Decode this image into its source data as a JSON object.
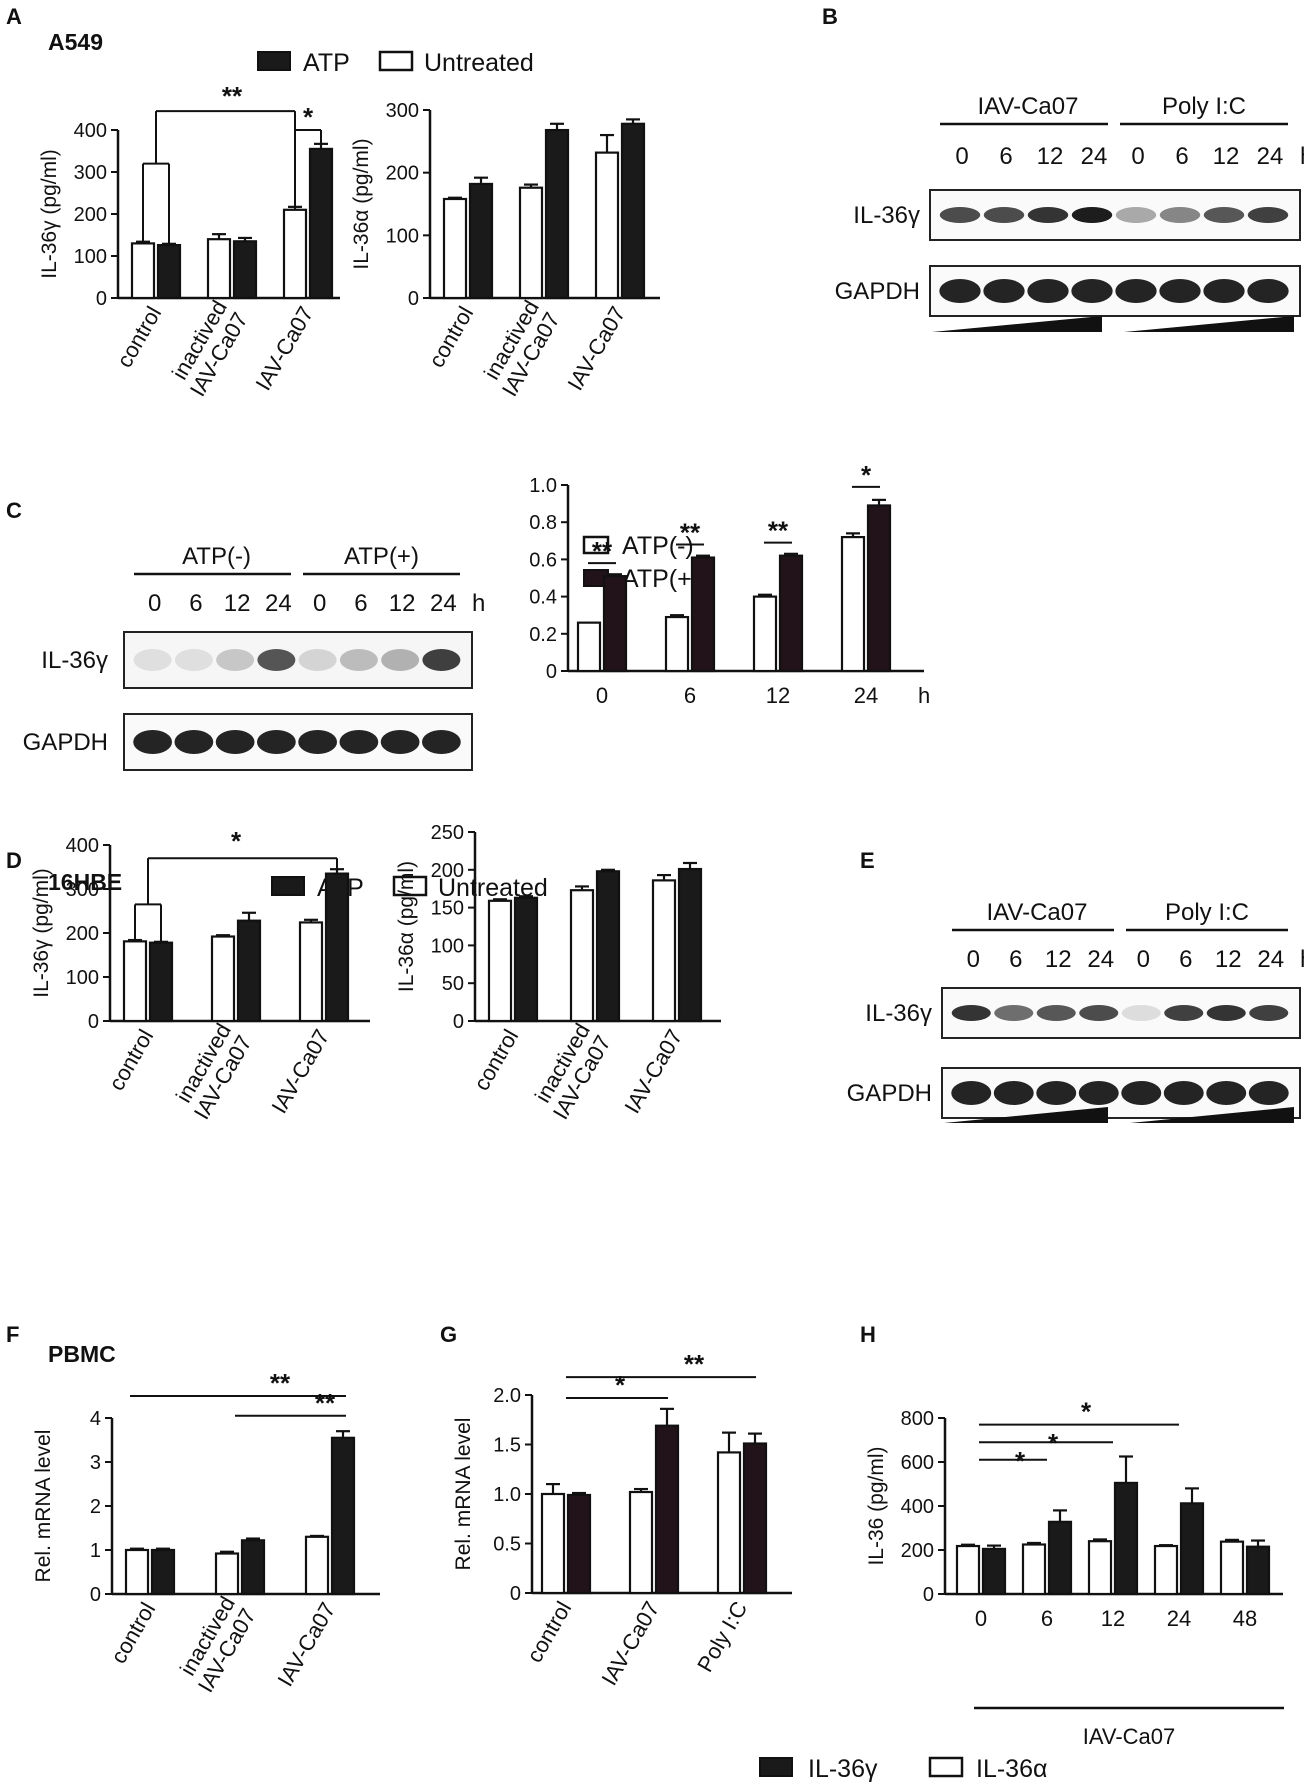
{
  "colors": {
    "filled": "#1a1a1a",
    "filled_dark": "#22131a",
    "open": "#ffffff",
    "stroke": "#111111"
  },
  "panels": {
    "A": {
      "letter": "A",
      "cell": "A549",
      "legend_filled": "ATP",
      "legend_open": "Untreated"
    },
    "B": {
      "letter": "B"
    },
    "C": {
      "letter": "C"
    },
    "D": {
      "letter": "D",
      "cell": "16HBE",
      "legend_filled": "ATP",
      "legend_open": "Untreated"
    },
    "E": {
      "letter": "E"
    },
    "F": {
      "letter": "F",
      "cell": "PBMC"
    },
    "G": {
      "letter": "G"
    },
    "H": {
      "letter": "H",
      "group_label": "IAV-Ca07",
      "legend_filled": "IL-36γ",
      "legend_open": "IL-36α"
    }
  },
  "blots": {
    "B": {
      "group1": "IAV-Ca07",
      "group2": "Poly I:C",
      "times": [
        "0",
        "6",
        "12",
        "24"
      ],
      "unit": "h",
      "row1": "IL-36γ",
      "row2": "GAPDH"
    },
    "C": {
      "group1": "ATP(-)",
      "group2": "ATP(+)",
      "times": [
        "0",
        "6",
        "12",
        "24"
      ],
      "unit": "h",
      "row1": "IL-36γ",
      "row2": "GAPDH"
    },
    "E": {
      "group1": "IAV-Ca07",
      "group2": "Poly I:C",
      "times": [
        "0",
        "6",
        "12",
        "24"
      ],
      "unit": "h",
      "row1": "IL-36γ",
      "row2": "GAPDH"
    }
  },
  "chart_data": [
    {
      "id": "A1",
      "type": "bar",
      "ylabel": "IL-36γ (pg/ml)",
      "ylim": [
        0,
        400
      ],
      "yticks": [
        0,
        100,
        200,
        300,
        400
      ],
      "categories": [
        "control",
        "inactived\nIAV-Ca07",
        "IAV-Ca07"
      ],
      "series": [
        {
          "name": "Untreated",
          "values": [
            130,
            140,
            210
          ],
          "err": [
            4,
            12,
            7
          ]
        },
        {
          "name": "ATP",
          "values": [
            126,
            135,
            355
          ],
          "err": [
            3,
            8,
            12
          ]
        }
      ],
      "sig": [
        {
          "text": "**",
          "kind": "bracket"
        },
        {
          "text": "*",
          "kind": "pair"
        }
      ]
    },
    {
      "id": "A2",
      "type": "bar",
      "ylabel": "IL-36α (pg/ml)",
      "ylim": [
        0,
        300
      ],
      "yticks": [
        0,
        100,
        200,
        300
      ],
      "categories": [
        "control",
        "inactived\nIAV-Ca07",
        "IAV-Ca07"
      ],
      "series": [
        {
          "name": "Untreated",
          "values": [
            158,
            176,
            232
          ],
          "err": [
            2,
            5,
            28
          ]
        },
        {
          "name": "ATP",
          "values": [
            182,
            268,
            278
          ],
          "err": [
            10,
            10,
            7
          ]
        }
      ]
    },
    {
      "id": "C2",
      "type": "bar",
      "ylim": [
        0,
        1.0
      ],
      "yticks": [
        "0",
        "0.2",
        "0.4",
        "0.6",
        "0.8",
        "1.0"
      ],
      "categories": [
        "0",
        "6",
        "12",
        "24"
      ],
      "x_unit": "h",
      "series": [
        {
          "name": "ATP(-)",
          "values": [
            0.26,
            0.29,
            0.4,
            0.72
          ],
          "err": [
            0,
            0.01,
            0.01,
            0.02
          ]
        },
        {
          "name": "ATP(+)",
          "values": [
            0.51,
            0.61,
            0.62,
            0.89
          ],
          "err": [
            0.01,
            0.01,
            0.01,
            0.03
          ]
        }
      ],
      "sig": [
        {
          "text": "**"
        },
        {
          "text": "**"
        },
        {
          "text": "**"
        },
        {
          "text": "*"
        }
      ]
    },
    {
      "id": "D1",
      "type": "bar",
      "ylabel": "IL-36γ (pg/ml)",
      "ylim": [
        0,
        400
      ],
      "yticks": [
        0,
        100,
        200,
        300,
        400
      ],
      "categories": [
        "control",
        "inactived\nIAV-Ca07",
        "IAV-Ca07"
      ],
      "series": [
        {
          "name": "Untreated",
          "values": [
            181,
            192,
            224
          ],
          "err": [
            3,
            3,
            6
          ]
        },
        {
          "name": "ATP",
          "values": [
            178,
            228,
            335
          ],
          "err": [
            2,
            18,
            10
          ]
        }
      ],
      "sig": [
        {
          "text": "*"
        }
      ]
    },
    {
      "id": "D2",
      "type": "bar",
      "ylabel": "IL-36α (pg/ml)",
      "ylim": [
        0,
        250
      ],
      "yticks": [
        0,
        50,
        100,
        150,
        200,
        250
      ],
      "categories": [
        "control",
        "inactived\nIAV-Ca07",
        "IAV-Ca07"
      ],
      "series": [
        {
          "name": "Untreated",
          "values": [
            159,
            173,
            186
          ],
          "err": [
            2,
            5,
            7
          ]
        },
        {
          "name": "ATP",
          "values": [
            163,
            198,
            201
          ],
          "err": [
            2,
            2,
            8
          ]
        }
      ]
    },
    {
      "id": "F",
      "type": "bar",
      "ylabel": "Rel. mRNA level",
      "ylim": [
        0,
        4
      ],
      "yticks": [
        0,
        1,
        2,
        3,
        4
      ],
      "categories": [
        "control",
        "inactived\nIAV-Ca07",
        "IAV-Ca07"
      ],
      "series": [
        {
          "name": "IL-36α",
          "values": [
            1.0,
            0.92,
            1.3
          ],
          "err": [
            0.03,
            0.04,
            0.02
          ]
        },
        {
          "name": "IL-36γ",
          "values": [
            1.0,
            1.22,
            3.55
          ],
          "err": [
            0.03,
            0.04,
            0.15
          ]
        }
      ],
      "sig": [
        {
          "text": "**"
        },
        {
          "text": "**"
        }
      ]
    },
    {
      "id": "G",
      "type": "bar",
      "ylabel": "Rel. mRNA level",
      "ylim": [
        0,
        2.0
      ],
      "yticks": [
        "0",
        "0.5",
        "1.0",
        "1.5",
        "2.0"
      ],
      "categories": [
        "control",
        "IAV-Ca07",
        "Poly I:C"
      ],
      "series": [
        {
          "name": "IL-36α",
          "values": [
            1.0,
            1.02,
            1.42
          ],
          "err": [
            0.1,
            0.03,
            0.2
          ]
        },
        {
          "name": "IL-36γ",
          "values": [
            0.99,
            1.69,
            1.51
          ],
          "err": [
            0.02,
            0.17,
            0.1
          ]
        }
      ],
      "sig": [
        {
          "text": "*"
        },
        {
          "text": "**"
        }
      ]
    },
    {
      "id": "H",
      "type": "bar",
      "ylabel": "IL-36 (pg/ml)",
      "ylim": [
        0,
        800
      ],
      "yticks": [
        0,
        200,
        400,
        600,
        800
      ],
      "categories": [
        "0",
        "6",
        "12",
        "24",
        "48"
      ],
      "series": [
        {
          "name": "IL-36α",
          "values": [
            218,
            225,
            240,
            218,
            238
          ],
          "err": [
            6,
            7,
            8,
            4,
            8
          ]
        },
        {
          "name": "IL-36γ",
          "values": [
            205,
            328,
            505,
            412,
            215
          ],
          "err": [
            15,
            52,
            120,
            68,
            28
          ]
        }
      ],
      "sig": [
        {
          "text": "*"
        },
        {
          "text": "*"
        },
        {
          "text": "*"
        }
      ]
    }
  ]
}
